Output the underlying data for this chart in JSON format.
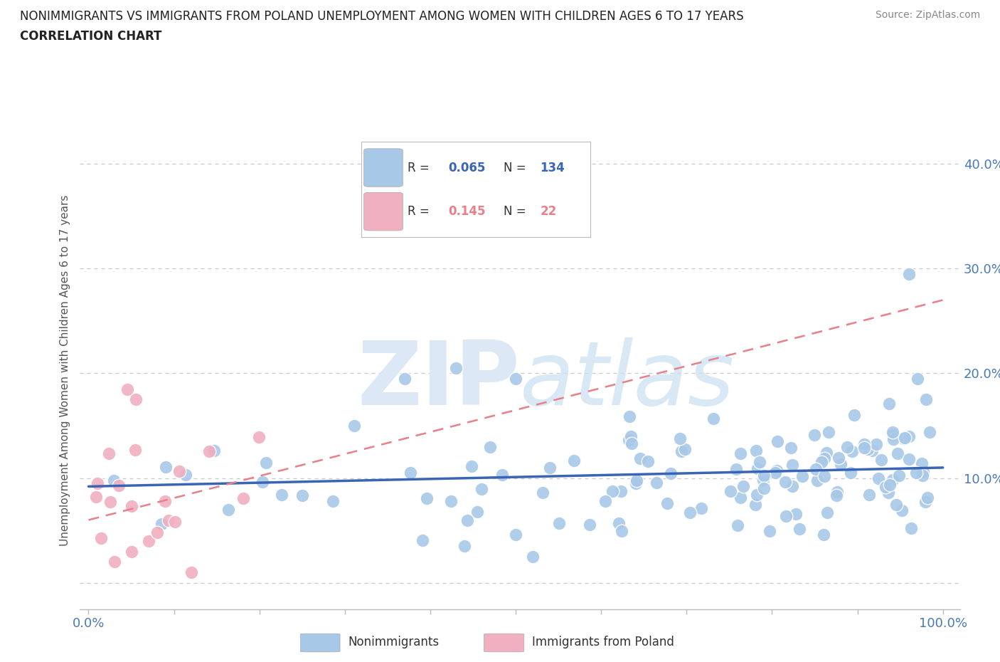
{
  "title_line1": "NONIMMIGRANTS VS IMMIGRANTS FROM POLAND UNEMPLOYMENT AMONG WOMEN WITH CHILDREN AGES 6 TO 17 YEARS",
  "title_line2": "CORRELATION CHART",
  "source_text": "Source: ZipAtlas.com",
  "ylabel": "Unemployment Among Women with Children Ages 6 to 17 years",
  "xlim": [
    -0.01,
    1.02
  ],
  "ylim": [
    -0.025,
    0.43
  ],
  "xticks": [
    0.0,
    0.1,
    0.2,
    0.3,
    0.4,
    0.5,
    0.6,
    0.7,
    0.8,
    0.9,
    1.0
  ],
  "xticklabels": [
    "0.0%",
    "",
    "",
    "",
    "",
    "",
    "",
    "",
    "",
    "",
    "100.0%"
  ],
  "yticks": [
    0.0,
    0.1,
    0.2,
    0.3,
    0.4
  ],
  "yticklabels": [
    "",
    "10.0%",
    "20.0%",
    "30.0%",
    "40.0%"
  ],
  "grid_color": "#c8c8c8",
  "background_color": "#ffffff",
  "watermark_text": "ZIPatlas",
  "watermark_color": "#dce8f5",
  "nonimmigrant_color": "#a8c8e8",
  "immigrant_color": "#f0b0c0",
  "nonimmigrant_line_color": "#3a65b5",
  "immigrant_line_color": "#e8808a",
  "R_nonimmigrant": 0.065,
  "N_nonimmigrant": 134,
  "R_immigrant": 0.145,
  "N_immigrant": 22,
  "ni_line_x0": 0.0,
  "ni_line_y0": 0.092,
  "ni_line_x1": 1.0,
  "ni_line_y1": 0.11,
  "im_line_x0": 0.0,
  "im_line_y0": 0.06,
  "im_line_x1": 1.0,
  "im_line_y1": 0.27
}
